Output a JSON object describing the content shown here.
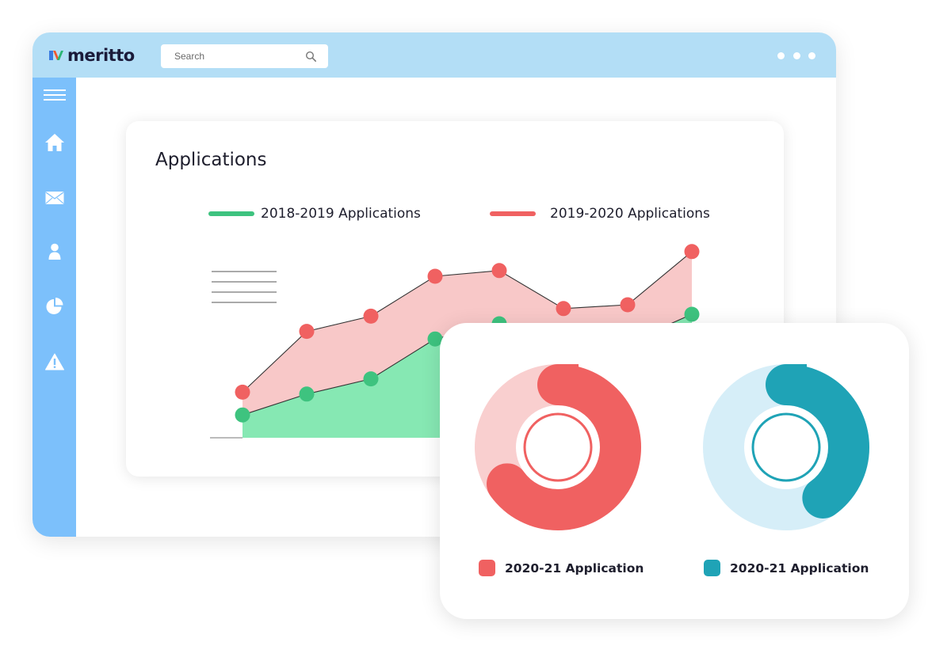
{
  "header": {
    "logo_text": "meritto",
    "search": {
      "placeholder": "Search",
      "value": ""
    }
  },
  "sidebar": {
    "items": [
      {
        "icon": "menu-icon"
      },
      {
        "icon": "home-icon"
      },
      {
        "icon": "mail-icon"
      },
      {
        "icon": "user-icon"
      },
      {
        "icon": "pie-chart-icon"
      },
      {
        "icon": "alert-icon"
      }
    ]
  },
  "colors": {
    "topbar": "#b3def6",
    "sidebar": "#7cc0fb",
    "green": "#3ec37f",
    "green_fill": "#86e8b3",
    "red": "#f06161",
    "red_fill": "#f8c8c8",
    "teal": "#1fa3b6",
    "teal_light": "#d6eef8",
    "red_light": "#f9cfcf"
  },
  "chart_data": [
    {
      "type": "area",
      "title": "Applications",
      "x": [
        1,
        2,
        3,
        4,
        5,
        6,
        7,
        8
      ],
      "ylim": [
        0,
        100
      ],
      "grid": false,
      "legend_position": "top",
      "series": [
        {
          "name": "2018-2019 Applications",
          "color": "#3ec37f",
          "values": [
            12,
            23,
            31,
            52,
            60,
            45,
            50,
            65
          ]
        },
        {
          "name": "2019-2020 Applications",
          "color": "#f06161",
          "values": [
            24,
            56,
            64,
            85,
            88,
            68,
            70,
            98
          ]
        }
      ]
    },
    {
      "type": "pie",
      "variant": "donut",
      "label": "2020-21 Application",
      "color": "#f06161",
      "values": [
        65,
        35
      ]
    },
    {
      "type": "pie",
      "variant": "donut",
      "label": "2020-21 Application",
      "color": "#1fa3b6",
      "values": [
        40,
        60
      ]
    }
  ]
}
